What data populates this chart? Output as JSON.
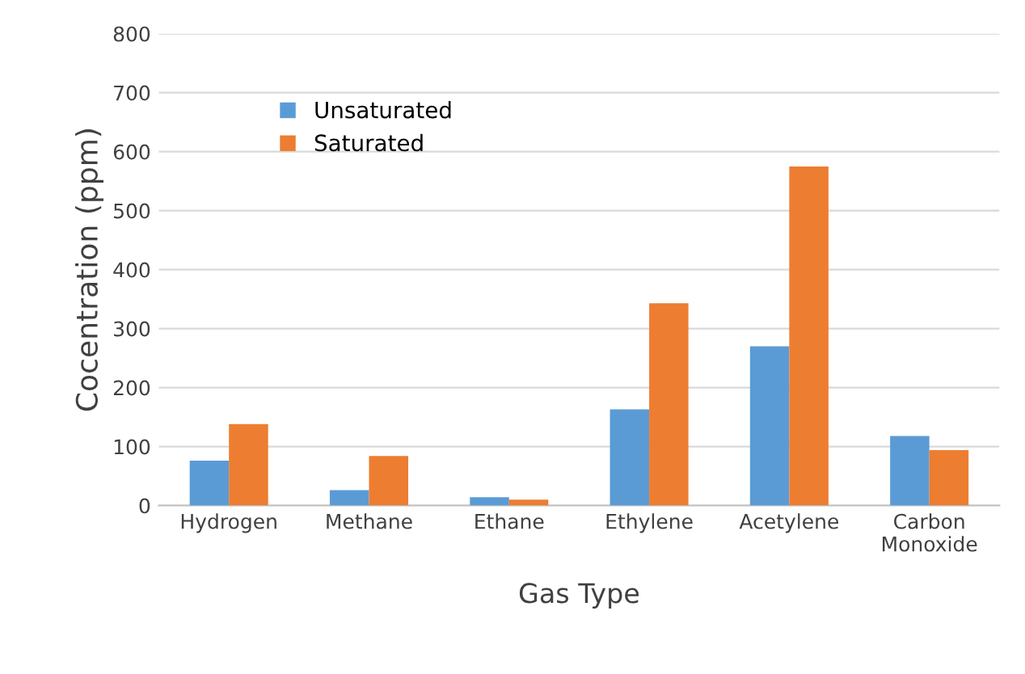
{
  "chart_data": {
    "type": "bar",
    "xlabel": "Gas Type",
    "ylabel": "Cocentration (ppm)",
    "categories": [
      "Hydrogen",
      "Methane",
      "Ethane",
      "Ethylene",
      "Acetylene",
      "Carbon\nMonoxide"
    ],
    "series": [
      {
        "name": "Unsaturated",
        "color": "#5b9bd5",
        "values": [
          76,
          26,
          14,
          163,
          270,
          118
        ]
      },
      {
        "name": "Saturated",
        "color": "#ed7d31",
        "values": [
          138,
          84,
          10,
          343,
          575,
          94
        ]
      }
    ],
    "ylim": [
      0,
      800
    ],
    "yticks": [
      0,
      100,
      200,
      300,
      400,
      500,
      600,
      700,
      800
    ],
    "grid": "y",
    "legend": "top left"
  }
}
